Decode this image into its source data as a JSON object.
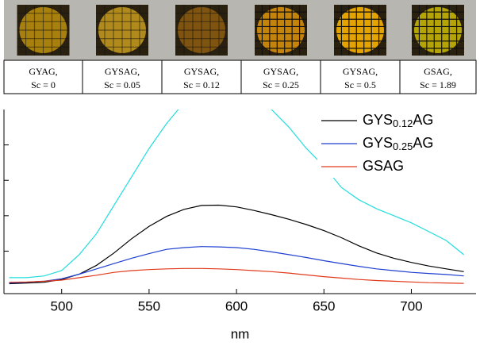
{
  "photos": {
    "samples": [
      {
        "name": "GYAG,",
        "sc": "Sc = 0"
      },
      {
        "name": "GYSAG,",
        "sc": "Sc = 0.05"
      },
      {
        "name": "GYSAG,",
        "sc": "Sc = 0.12"
      },
      {
        "name": "GYSAG,",
        "sc": "Sc = 0.25"
      },
      {
        "name": "GYSAG,",
        "sc": "Sc = 0.5"
      },
      {
        "name": "GSAG,",
        "sc": "Sc = 1.89"
      }
    ]
  },
  "chart_data": {
    "type": "line",
    "xlabel": "nm",
    "x": [
      470,
      480,
      490,
      500,
      510,
      520,
      530,
      540,
      550,
      560,
      570,
      580,
      590,
      600,
      610,
      620,
      630,
      640,
      650,
      660,
      670,
      680,
      690,
      700,
      710,
      720,
      730
    ],
    "series": [
      {
        "color": "#22dddd",
        "values": [
          0.25,
          0.25,
          0.3,
          0.45,
          0.9,
          1.5,
          2.3,
          3.1,
          3.9,
          4.6,
          5.2,
          5.5,
          5.6,
          5.5,
          5.3,
          5.0,
          4.5,
          3.9,
          3.4,
          2.8,
          2.45,
          2.2,
          2.0,
          1.8,
          1.55,
          1.3,
          0.9
        ]
      },
      {
        "name": "GYS0.12AG",
        "color": "#000000",
        "values": [
          0.08,
          0.1,
          0.12,
          0.2,
          0.35,
          0.6,
          0.95,
          1.35,
          1.7,
          1.98,
          2.18,
          2.29,
          2.3,
          2.25,
          2.15,
          2.03,
          1.9,
          1.75,
          1.58,
          1.38,
          1.15,
          0.95,
          0.8,
          0.68,
          0.58,
          0.5,
          0.42
        ]
      },
      {
        "name": "GYS0.25AG",
        "color": "#1f3fd0",
        "values": [
          0.1,
          0.12,
          0.15,
          0.22,
          0.35,
          0.5,
          0.65,
          0.8,
          0.93,
          1.05,
          1.1,
          1.13,
          1.12,
          1.1,
          1.05,
          0.98,
          0.9,
          0.82,
          0.73,
          0.65,
          0.57,
          0.5,
          0.45,
          0.4,
          0.37,
          0.34,
          0.3
        ]
      },
      {
        "name": "GSAG",
        "color": "#e03a1a",
        "values": [
          0.12,
          0.13,
          0.15,
          0.18,
          0.25,
          0.32,
          0.4,
          0.45,
          0.48,
          0.5,
          0.51,
          0.51,
          0.5,
          0.48,
          0.45,
          0.42,
          0.38,
          0.33,
          0.28,
          0.24,
          0.2,
          0.17,
          0.15,
          0.13,
          0.11,
          0.1,
          0.09
        ]
      }
    ],
    "xlim": [
      467,
      737
    ],
    "xticks": [
      500,
      550,
      600,
      650,
      700
    ],
    "ylim": [
      -0.2,
      5
    ],
    "yticks": [
      1,
      2,
      3,
      4
    ],
    "legend": "upper right"
  }
}
